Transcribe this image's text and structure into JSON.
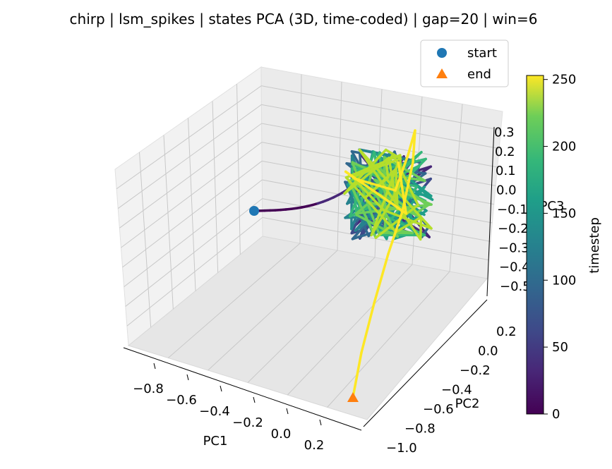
{
  "chart_data": {
    "type": "line",
    "projection": "3d",
    "title": "chirp | lsm_spikes | states PCA (3D, time-coded) | gap=20 | win=6",
    "xlabel": "PC1",
    "ylabel": "PC2",
    "zlabel": "PC3",
    "x_ticks": [
      "−0.8",
      "−0.6",
      "−0.4",
      "−0.2",
      "0.0",
      "0.2"
    ],
    "y_ticks": [
      "−1.0",
      "−0.8",
      "−0.6",
      "−0.4",
      "−0.2",
      "0.0",
      "0.2"
    ],
    "z_ticks": [
      "−0.5",
      "−0.4",
      "−0.3",
      "−0.2",
      "−0.1",
      "0.0",
      "0.1",
      "0.2",
      "0.3"
    ],
    "xlim": [
      -0.9,
      0.25
    ],
    "ylim": [
      -1.05,
      0.3
    ],
    "zlim": [
      -0.55,
      0.35
    ],
    "colorbar": {
      "label": "timestep",
      "ticks": [
        "0",
        "50",
        "100",
        "150",
        "200",
        "250"
      ],
      "range": [
        0,
        253
      ],
      "colormap": "viridis"
    },
    "legend": {
      "placement": "upper right",
      "entries": [
        {
          "label": "start",
          "marker": "circle",
          "color": "#1f77b4"
        },
        {
          "label": "end",
          "marker": "triangle",
          "color": "#ff7f0e"
        }
      ]
    },
    "grid": true,
    "series": [
      {
        "label_source": "trajectory",
        "timesteps": [
          0,
          253
        ],
        "start": {
          "x": -0.9,
          "y": 0.25,
          "z": 0.02
        },
        "end": {
          "x": 0.2,
          "y": -0.95,
          "z": -0.1
        }
      }
    ]
  }
}
